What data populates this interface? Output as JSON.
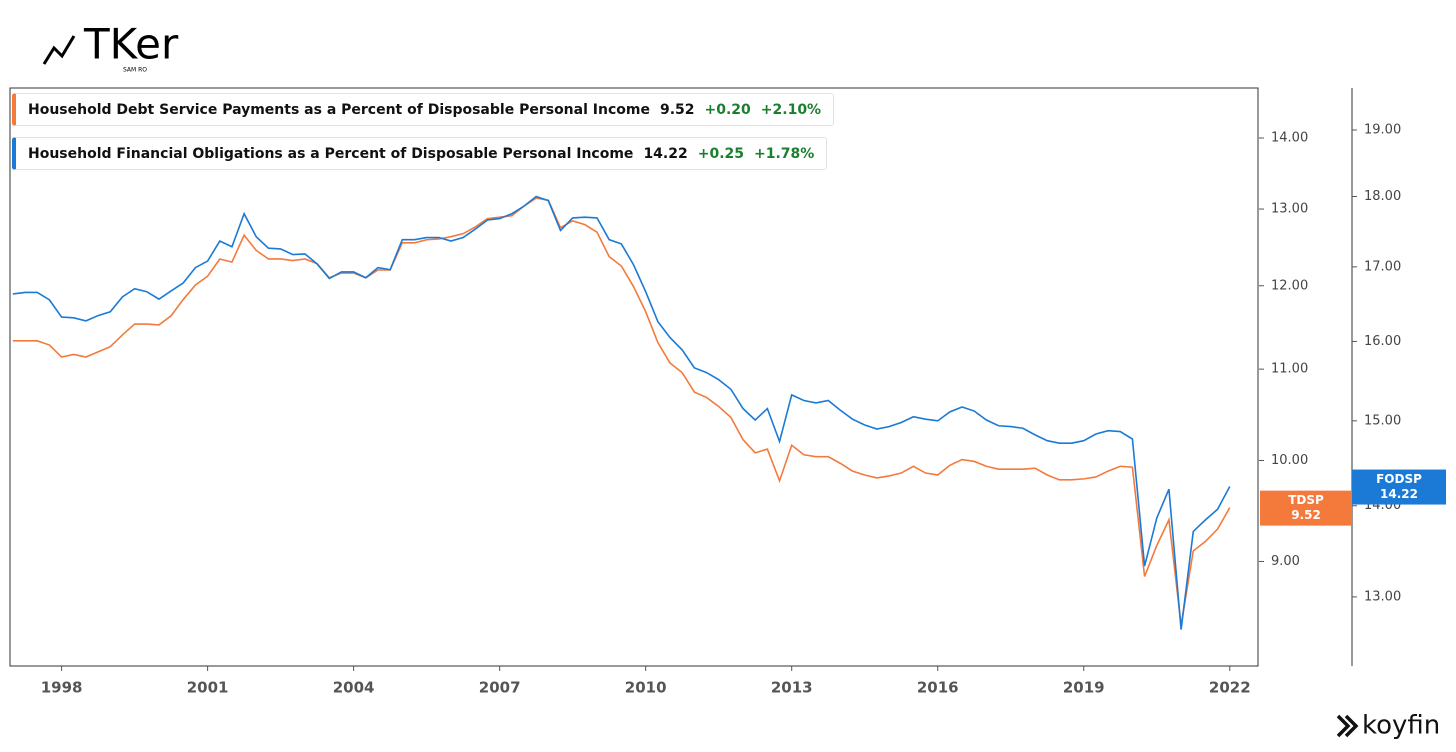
{
  "branding": {
    "logo": "TKer",
    "byline": "SAM RO",
    "source": "koyfin"
  },
  "chart_data": {
    "type": "line",
    "log_scale": true,
    "grid": false,
    "legend": "upper left",
    "x": [
      1997,
      1997.25,
      1997.5,
      1997.75,
      1998,
      1998.25,
      1998.5,
      1998.75,
      1999,
      1999.25,
      1999.5,
      1999.75,
      2000,
      2000.25,
      2000.5,
      2000.75,
      2001,
      2001.25,
      2001.5,
      2001.75,
      2002,
      2002.25,
      2002.5,
      2002.75,
      2003,
      2003.25,
      2003.5,
      2003.75,
      2004,
      2004.25,
      2004.5,
      2004.75,
      2005,
      2005.25,
      2005.5,
      2005.75,
      2006,
      2006.25,
      2006.5,
      2006.75,
      2007,
      2007.25,
      2007.5,
      2007.75,
      2008,
      2008.25,
      2008.5,
      2008.75,
      2009,
      2009.25,
      2009.5,
      2009.75,
      2010,
      2010.25,
      2010.5,
      2010.75,
      2011,
      2011.25,
      2011.5,
      2011.75,
      2012,
      2012.25,
      2012.5,
      2012.75,
      2013,
      2013.25,
      2013.5,
      2013.75,
      2014,
      2014.25,
      2014.5,
      2014.75,
      2015,
      2015.25,
      2015.5,
      2015.75,
      2016,
      2016.25,
      2016.5,
      2016.75,
      2017,
      2017.25,
      2017.5,
      2017.75,
      2018,
      2018.25,
      2018.5,
      2018.75,
      2019,
      2019.25,
      2019.5,
      2019.75,
      2020,
      2020.25,
      2020.5,
      2020.75,
      2021,
      2021.25,
      2021.5,
      2021.75,
      2022
    ],
    "xlim": [
      1996.94,
      2022.58
    ],
    "xticks": [
      1998,
      2001,
      2004,
      2007,
      2010,
      2013,
      2016,
      2019,
      2022
    ],
    "ylim": [
      8.07,
      14.75
    ],
    "yticks": [
      {
        "value": 9,
        "label": "9.00"
      },
      {
        "value": 10,
        "label": "10.00"
      },
      {
        "value": 11,
        "label": "11.00"
      },
      {
        "value": 12,
        "label": "12.00"
      },
      {
        "value": 13,
        "label": "13.00"
      },
      {
        "value": 14,
        "label": "14.00"
      }
    ],
    "y2lim": [
      12.29,
      19.66
    ],
    "y2ticks": [
      {
        "value": 13,
        "label": "13.00"
      },
      {
        "value": 14,
        "label": "14.00"
      },
      {
        "value": 15,
        "label": "15.00"
      },
      {
        "value": 16,
        "label": "16.00"
      },
      {
        "value": 17,
        "label": "17.00"
      },
      {
        "value": 18,
        "label": "18.00"
      },
      {
        "value": 19,
        "label": "19.00"
      }
    ],
    "series": [
      {
        "name": "Household Debt Service Payments as a Percent of Disposable Personal Income",
        "code": "TDSP",
        "color": "#f47a3c",
        "latest": "9.52",
        "change": "+0.20",
        "change_pct": "+2.10%",
        "values": [
          11.33,
          11.33,
          11.33,
          11.28,
          11.14,
          11.17,
          11.14,
          11.2,
          11.26,
          11.4,
          11.53,
          11.53,
          11.52,
          11.63,
          11.83,
          12.01,
          12.12,
          12.34,
          12.3,
          12.65,
          12.45,
          12.34,
          12.34,
          12.32,
          12.34,
          12.28,
          12.1,
          12.16,
          12.16,
          12.1,
          12.2,
          12.2,
          12.55,
          12.55,
          12.59,
          12.6,
          12.63,
          12.67,
          12.76,
          12.87,
          12.89,
          12.91,
          13.04,
          13.15,
          13.12,
          12.75,
          12.84,
          12.79,
          12.69,
          12.37,
          12.25,
          11.99,
          11.68,
          11.31,
          11.07,
          10.96,
          10.74,
          10.68,
          10.58,
          10.46,
          10.22,
          10.08,
          10.12,
          9.79,
          10.16,
          10.06,
          10.04,
          10.04,
          9.97,
          9.89,
          9.85,
          9.82,
          9.84,
          9.87,
          9.94,
          9.87,
          9.85,
          9.95,
          10.01,
          9.99,
          9.94,
          9.91,
          9.91,
          9.91,
          9.92,
          9.85,
          9.8,
          9.8,
          9.81,
          9.83,
          9.89,
          9.94,
          9.93,
          8.86,
          9.15,
          9.4,
          8.42,
          9.1,
          9.19,
          9.31,
          9.52
        ]
      },
      {
        "name": "Household Financial Obligations as a Percent of Disposable Personal Income",
        "code": "FODSP",
        "color": "#1a7ad6",
        "axis": "y2",
        "latest": "14.22",
        "change": "+0.25",
        "change_pct": "+1.78%",
        "values": [
          16.63,
          16.65,
          16.65,
          16.55,
          16.32,
          16.31,
          16.27,
          16.34,
          16.39,
          16.59,
          16.7,
          16.66,
          16.56,
          16.67,
          16.78,
          16.99,
          17.08,
          17.36,
          17.28,
          17.75,
          17.42,
          17.26,
          17.25,
          17.17,
          17.18,
          17.04,
          16.84,
          16.93,
          16.93,
          16.85,
          16.99,
          16.96,
          17.38,
          17.38,
          17.41,
          17.41,
          17.36,
          17.41,
          17.53,
          17.66,
          17.68,
          17.75,
          17.86,
          18.0,
          17.94,
          17.51,
          17.69,
          17.7,
          17.69,
          17.38,
          17.32,
          17.03,
          16.66,
          16.26,
          16.05,
          15.89,
          15.66,
          15.6,
          15.51,
          15.39,
          15.15,
          15.01,
          15.15,
          14.75,
          15.32,
          15.25,
          15.22,
          15.25,
          15.13,
          15.02,
          14.95,
          14.9,
          14.93,
          14.98,
          15.05,
          15.02,
          15.0,
          15.11,
          15.17,
          15.12,
          15.01,
          14.94,
          14.93,
          14.91,
          14.83,
          14.76,
          14.73,
          14.73,
          14.76,
          14.84,
          14.88,
          14.87,
          14.78,
          13.33,
          13.86,
          14.19,
          12.66,
          13.71,
          13.84,
          13.96,
          14.22
        ]
      }
    ]
  }
}
